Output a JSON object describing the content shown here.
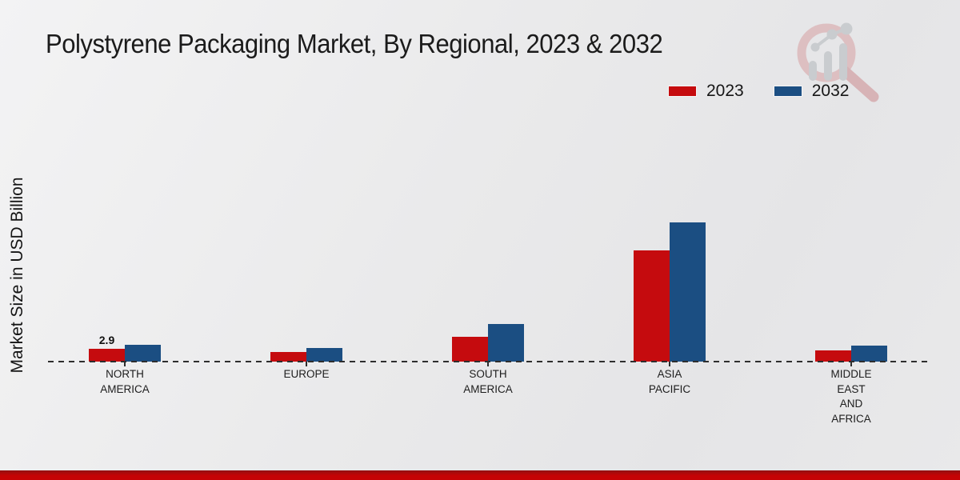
{
  "page": {
    "title": "Polystyrene Packaging Market, By Regional, 2023 & 2032",
    "ylabel": "Market Size in USD Billion"
  },
  "legend": {
    "items": [
      {
        "label": "2023",
        "color": "#c50b0e"
      },
      {
        "label": "2032",
        "color": "#1b4e82"
      }
    ]
  },
  "icons": {
    "logo": "magnifier-bar-chart-logo"
  },
  "chart_data": {
    "type": "bar",
    "title": "Polystyrene Packaging Market, By Regional, 2023 & 2032",
    "xlabel": "",
    "ylabel": "Market Size in USD Billion",
    "categories": [
      "NORTH AMERICA",
      "EUROPE",
      "SOUTH AMERICA",
      "ASIA PACIFIC",
      "MIDDLE EAST AND AFRICA"
    ],
    "category_label_lines": [
      [
        "NORTH",
        "AMERICA"
      ],
      [
        "EUROPE"
      ],
      [
        "SOUTH",
        "AMERICA"
      ],
      [
        "ASIA",
        "PACIFIC"
      ],
      [
        "MIDDLE",
        "EAST",
        "AND",
        "AFRICA"
      ]
    ],
    "series": [
      {
        "name": "2023",
        "color": "#c50b0e",
        "values": [
          2.9,
          2.2,
          5.7,
          25.2,
          2.5
        ]
      },
      {
        "name": "2032",
        "color": "#1b4e82",
        "values": [
          3.8,
          3.0,
          8.5,
          31.5,
          3.7
        ]
      }
    ],
    "data_labels": [
      {
        "series_index": 0,
        "category_index": 0,
        "text": "2.9"
      }
    ],
    "ylim": [
      0,
      35
    ],
    "grid": false,
    "legend_position": "top-right",
    "baseline_style": "dashed",
    "units": "USD Billion"
  }
}
